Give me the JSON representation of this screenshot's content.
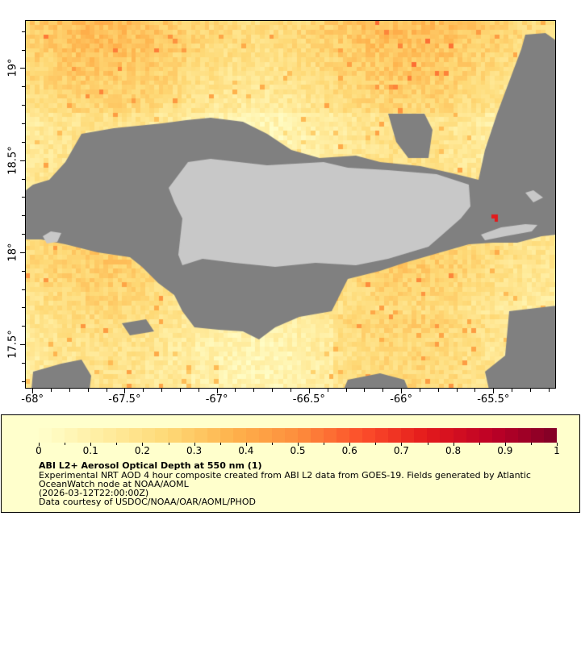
{
  "map": {
    "lon_range": [
      -68.04,
      -65.16
    ],
    "lat_range": [
      17.26,
      19.26
    ],
    "x_ticks": [
      {
        "value": -68,
        "label": "-68°"
      },
      {
        "value": -67.5,
        "label": "-67.5°"
      },
      {
        "value": -67,
        "label": "-67°"
      },
      {
        "value": -66.5,
        "label": "-66.5°"
      },
      {
        "value": -66,
        "label": "-66°"
      },
      {
        "value": -65.5,
        "label": "-65.5°"
      }
    ],
    "y_ticks": [
      {
        "value": 19,
        "label": "19°"
      },
      {
        "value": 18.5,
        "label": "18.5°"
      },
      {
        "value": 18,
        "label": "18°"
      },
      {
        "value": 17.5,
        "label": "17.5°"
      }
    ],
    "colors": {
      "no_data": "#808080",
      "land": "#c8c8c8"
    }
  },
  "legend": {
    "range": [
      0,
      1
    ],
    "colors": [
      "#ffffcc",
      "#ffeda0",
      "#fed976",
      "#feb24c",
      "#fd8d3c",
      "#fc4e2a",
      "#e31a1c",
      "#bd0026",
      "#800026"
    ],
    "tick_labels": [
      "0",
      "0.1",
      "0.2",
      "0.3",
      "0.4",
      "0.5",
      "0.6",
      "0.7",
      "0.8",
      "0.9",
      "1"
    ],
    "title": "ABI L2+ Aerosol Optical Depth at 550 nm (1)",
    "line1": "Experimental NRT AOD 4 hour composite created from ABI L2 data from GOES-19. Fields generated by Atlantic",
    "line2": "OceanWatch node at NOAA/AOML",
    "line3": "(2026-03-12T22:00:00Z)",
    "line4": "Data courtesy of USDOC/NOAA/OAR/AOML/PHOD"
  }
}
